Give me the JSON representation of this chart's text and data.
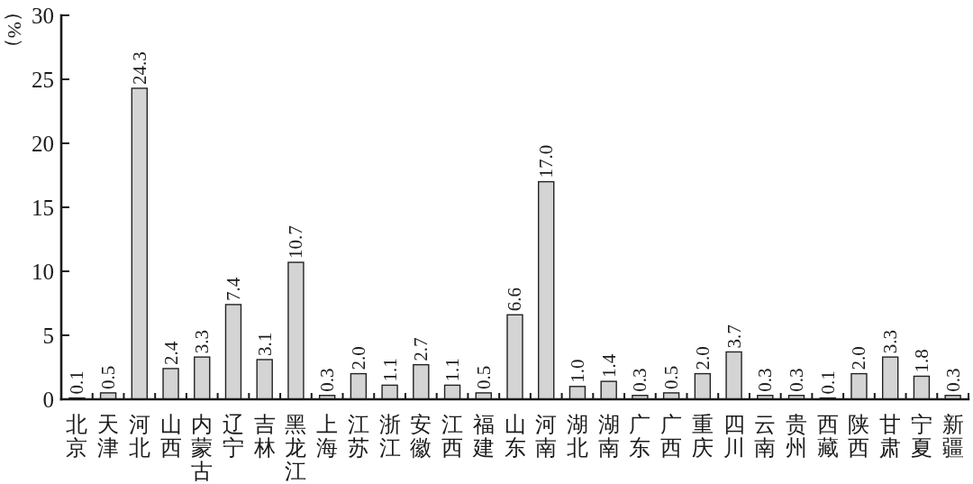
{
  "chart_data": {
    "type": "bar",
    "ylabel": "（%）",
    "categories": [
      "北京",
      "天津",
      "河北",
      "山西",
      "内蒙古",
      "辽宁",
      "吉林",
      "黑龙江",
      "上海",
      "江苏",
      "浙江",
      "安徽",
      "江西",
      "福建",
      "山东",
      "河南",
      "湖北",
      "湖南",
      "广东",
      "广西",
      "重庆",
      "四川",
      "云南",
      "贵州",
      "西藏",
      "陕西",
      "甘肃",
      "宁夏",
      "新疆"
    ],
    "values": [
      0.1,
      0.5,
      24.3,
      2.4,
      3.3,
      7.4,
      3.1,
      10.7,
      0.3,
      2.0,
      1.1,
      2.7,
      1.1,
      0.5,
      6.6,
      17.0,
      1.0,
      1.4,
      0.3,
      0.5,
      2.0,
      3.7,
      0.3,
      0.3,
      0.1,
      2.0,
      3.3,
      1.8,
      0.3
    ],
    "value_labels": [
      "0.1",
      "0.5",
      "24.3",
      "2.4",
      "3.3",
      "7.4",
      "3.1",
      "10.7",
      "0.3",
      "2.0",
      "1.1",
      "2.7",
      "1.1",
      "0.5",
      "6.6",
      "17.0",
      "1.0",
      "1.4",
      "0.3",
      "0.5",
      "2.0",
      "3.7",
      "0.3",
      "0.3",
      "0.1",
      "2.0",
      "3.3",
      "1.8",
      "0.3"
    ],
    "color": "#d4d4d4",
    "ylim": [
      0,
      30
    ],
    "yticks": [
      0,
      5,
      10,
      15,
      20,
      25,
      30
    ]
  }
}
